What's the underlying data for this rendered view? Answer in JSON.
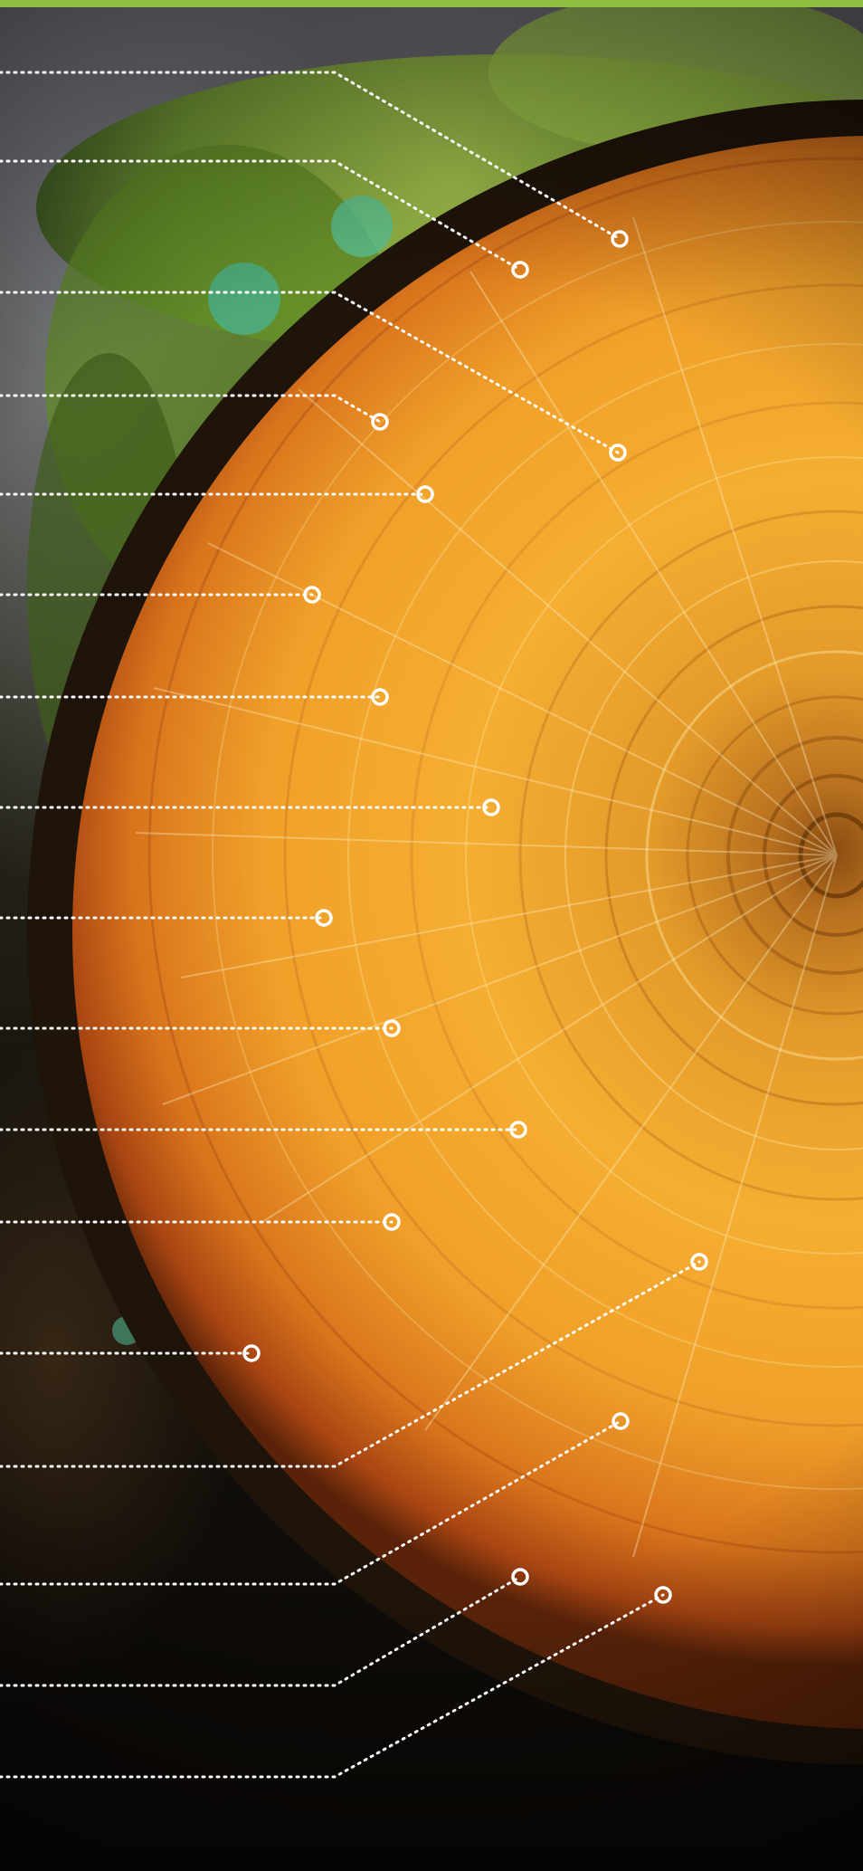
{
  "image": {
    "subject_icon": "tree-trunk-cross-section",
    "colors": {
      "accent_bar": "#8cbf3f",
      "moss": "#7fa82f",
      "bark": "#2a1a0c",
      "sapwood": "#c8601a",
      "heartwood": "#f2a42a",
      "annotation": "#ffffff"
    }
  }
}
